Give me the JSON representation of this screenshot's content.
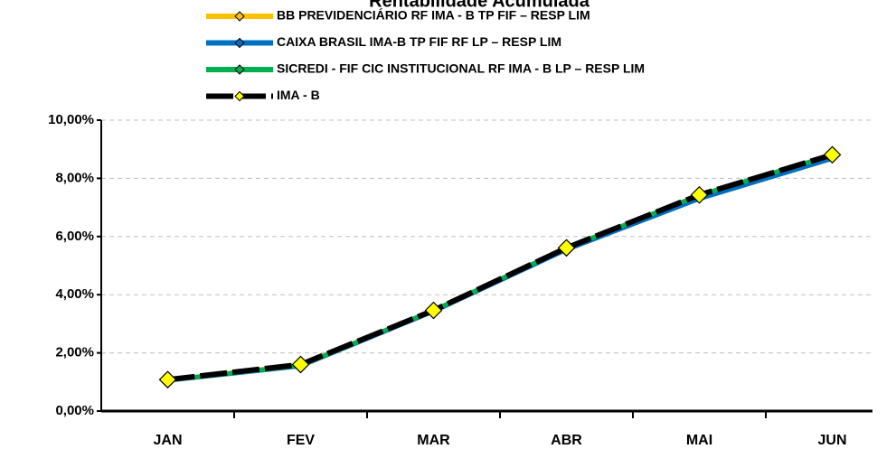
{
  "chart_data": {
    "type": "line",
    "title": "Rentabilidade Acumulada",
    "categories": [
      "JAN",
      "FEV",
      "MAR",
      "ABR",
      "MAI",
      "JUN"
    ],
    "series": [
      {
        "name": "BB PREVIDENCIÁRIO RF IMA - B TP FIF – RESP LIM",
        "color": "#ffc000",
        "values": [
          1.07,
          1.58,
          3.45,
          5.6,
          7.4,
          8.75
        ]
      },
      {
        "name": "CAIXA BRASIL IMA-B TP FIF RF LP – RESP LIM",
        "color": "#0070c0",
        "values": [
          1.05,
          1.55,
          3.43,
          5.55,
          7.3,
          8.68
        ]
      },
      {
        "name": "SICREDI - FIF CIC INSTITUCIONAL RF IMA - B LP – RESP LIM",
        "color": "#00b050",
        "values": [
          1.06,
          1.57,
          3.46,
          5.6,
          7.42,
          8.8
        ]
      },
      {
        "name": "IMA - B",
        "color": "#000000",
        "dashed": true,
        "marker_color": "#ffff00",
        "values": [
          1.08,
          1.6,
          3.46,
          5.61,
          7.43,
          8.81
        ]
      }
    ],
    "ylim": [
      0,
      10
    ],
    "yticks": [
      {
        "value": 0,
        "label": "0,00%"
      },
      {
        "value": 2,
        "label": "2,00%"
      },
      {
        "value": 4,
        "label": "4,00%"
      },
      {
        "value": 6,
        "label": "6,00%"
      },
      {
        "value": 8,
        "label": "8,00%"
      },
      {
        "value": 10,
        "label": "10,00%"
      }
    ],
    "grid": true
  }
}
